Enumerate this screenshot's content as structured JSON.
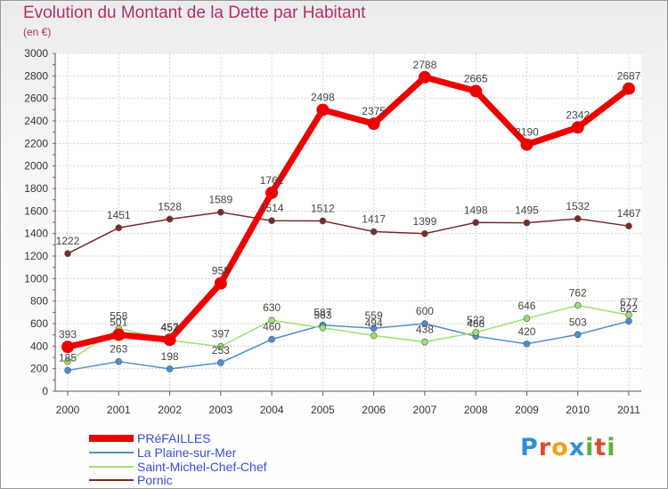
{
  "title": "Evolution du Montant de la Dette par Habitant",
  "subtitle": "(en €)",
  "logo": {
    "text": "Proxiti",
    "colors": [
      "#2f8fd8",
      "#e34a2f",
      "#f0a11e",
      "#2f8fd8",
      "#58b435",
      "#e34a2f",
      "#58b435"
    ]
  },
  "chart_data": {
    "type": "line",
    "x": [
      "2000",
      "2001",
      "2002",
      "2003",
      "2004",
      "2005",
      "2006",
      "2007",
      "2008",
      "2009",
      "2010",
      "2011"
    ],
    "ylim": [
      0,
      3000
    ],
    "yticks": [
      0,
      200,
      400,
      600,
      800,
      1000,
      1200,
      1400,
      1600,
      1800,
      2000,
      2200,
      2400,
      2600,
      2800,
      3000
    ],
    "grid": true,
    "legend_position": "bottom-left",
    "series": [
      {
        "name": "PRéFAILLES",
        "color": "#ee0000",
        "values": [
          393,
          501,
          457,
          958,
          1762,
          2498,
          2375,
          2788,
          2665,
          2190,
          2342,
          2687
        ],
        "labels": [
          "393",
          "501",
          "457",
          "958",
          "1762",
          "2498",
          "2375",
          "2788",
          "2665",
          "2190",
          "2342",
          "2687"
        ]
      },
      {
        "name": "La Plaine-sur-Mer",
        "color": "#4a90d0",
        "values": [
          185,
          263,
          198,
          253,
          460,
          587,
          559,
          600,
          488,
          420,
          503,
          622
        ],
        "labels": [
          "185",
          "263",
          "198",
          "253",
          "460",
          "587",
          "559",
          "600",
          "488",
          "420",
          "503",
          "622"
        ]
      },
      {
        "name": "Saint-Michel-Chef-Chef",
        "color": "#9ee070",
        "values": [
          263,
          558,
          452,
          397,
          630,
          563,
          494,
          438,
          522,
          646,
          762,
          677
        ],
        "labels": [
          "",
          "558",
          "452",
          "397",
          "630",
          "563",
          "494",
          "438",
          "522",
          "646",
          "762",
          "677"
        ]
      },
      {
        "name": "Pornic",
        "color": "#7a2a2a",
        "values": [
          1222,
          1451,
          1528,
          1589,
          1514,
          1512,
          1417,
          1399,
          1498,
          1495,
          1532,
          1467
        ],
        "labels": [
          "1222",
          "1451",
          "1528",
          "1589",
          "1514",
          "1512",
          "1417",
          "1399",
          "1498",
          "1495",
          "1532",
          "1467"
        ]
      }
    ]
  }
}
